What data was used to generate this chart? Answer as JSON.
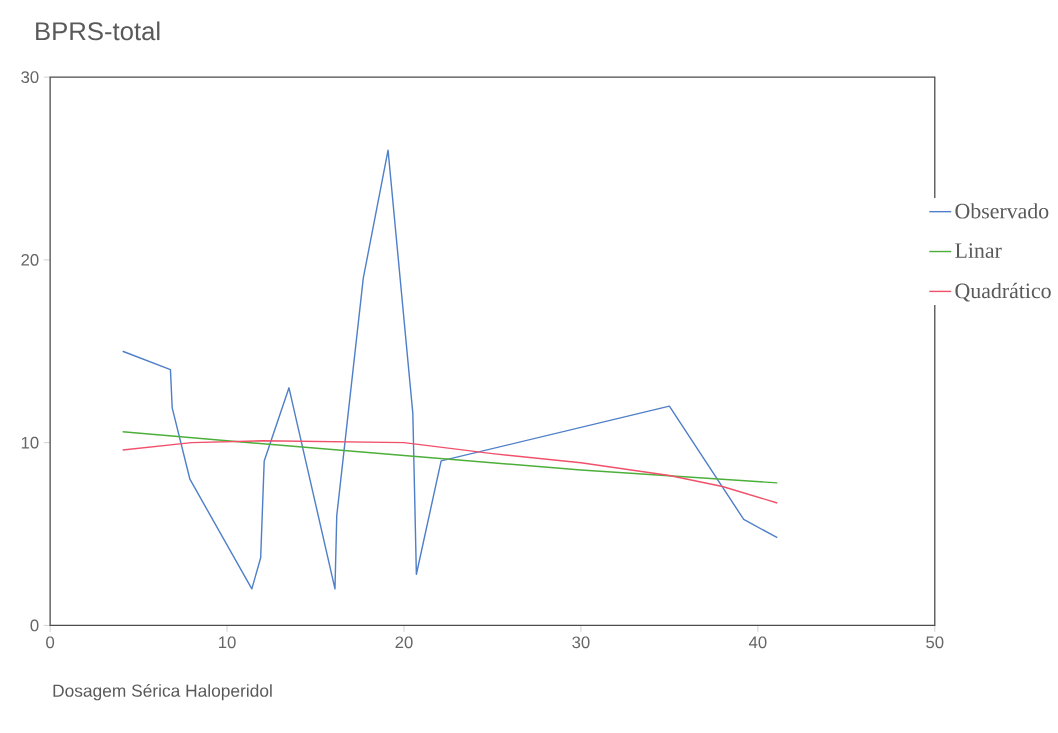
{
  "chart_data": {
    "type": "line",
    "title": "BPRS-total",
    "xlabel": "Dosagem Sérica Haloperidol",
    "xlim": [
      0,
      50
    ],
    "xticks": [
      0,
      10,
      20,
      30,
      40,
      50
    ],
    "ylim": [
      0,
      30
    ],
    "yticks": [
      0,
      10,
      20,
      30
    ],
    "grid": false,
    "legend": "right",
    "marker": "none",
    "line_style": "solid",
    "series": [
      {
        "name": "Observado",
        "color": "#4f7fc8",
        "x": [
          4.1,
          6.8,
          6.9,
          7.9,
          11.4,
          11.9,
          12.1,
          13.5,
          16.1,
          16.2,
          17.7,
          19.1,
          20.5,
          20.7,
          22.1,
          35.0,
          39.2,
          41.1
        ],
        "values": [
          15.0,
          14.0,
          11.9,
          8.0,
          2.0,
          3.7,
          9.0,
          13.0,
          2.0,
          6.0,
          19.0,
          26.0,
          11.6,
          2.8,
          9.0,
          12.0,
          5.8,
          4.8
        ]
      },
      {
        "name": "Linar",
        "color": "#4caf3a",
        "x": [
          4.1,
          10,
          20,
          30,
          41.1
        ],
        "values": [
          10.6,
          10.1,
          9.3,
          8.5,
          7.8
        ]
      },
      {
        "name": "Quadrático",
        "color": "#f0506a",
        "x": [
          4.1,
          8,
          12,
          20,
          25,
          30,
          35,
          38,
          41.1
        ],
        "values": [
          9.6,
          10.0,
          10.1,
          10.0,
          9.4,
          8.9,
          8.2,
          7.6,
          6.7
        ]
      }
    ]
  }
}
